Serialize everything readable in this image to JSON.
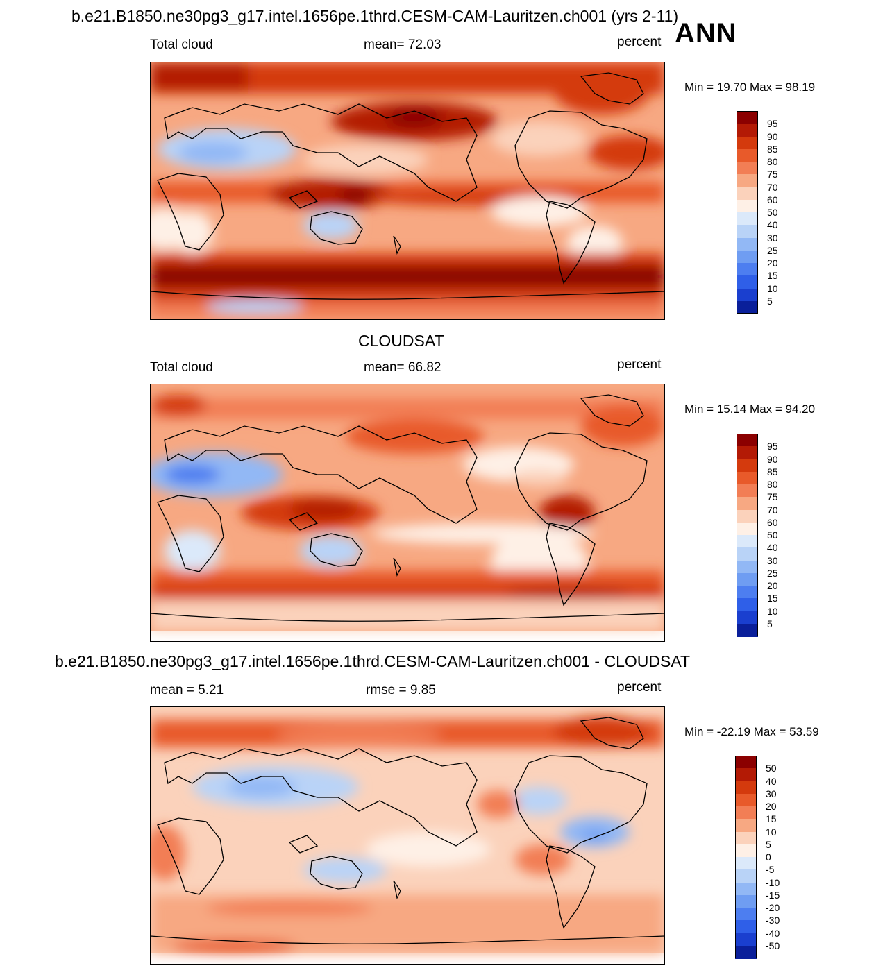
{
  "header": {
    "case_title": "b.e21.B1850.ne30pg3_g17.intel.1656pe.1thrd.CESM-CAM-Lauritzen.ch001 (yrs 2-11)",
    "season": "ANN"
  },
  "panels": [
    {
      "title": "",
      "left_label": "Total cloud",
      "center_label": "mean=  72.03",
      "units": "percent",
      "minmax": "Min =  19.70 Max =  98.19",
      "colorbar": {
        "colors": [
          "#8b0000",
          "#b31a05",
          "#d43a0d",
          "#e85a2a",
          "#f27e55",
          "#f7a882",
          "#fbd2bb",
          "#fef0e6",
          "#dbe9fa",
          "#b9d3f7",
          "#92b8f5",
          "#6f9df2",
          "#4d7ef0",
          "#2f5fe8",
          "#1a3fcf",
          "#0a1f9a"
        ],
        "labels": [
          "95",
          "90",
          "85",
          "80",
          "75",
          "70",
          "60",
          "50",
          "40",
          "30",
          "25",
          "20",
          "15",
          "10",
          "5"
        ]
      }
    },
    {
      "title": "CLOUDSAT",
      "left_label": "Total cloud",
      "center_label": "mean=  66.82",
      "units": "percent",
      "minmax": "Min =  15.14 Max =  94.20",
      "colorbar": {
        "colors": [
          "#8b0000",
          "#b31a05",
          "#d43a0d",
          "#e85a2a",
          "#f27e55",
          "#f7a882",
          "#fbd2bb",
          "#fef0e6",
          "#dbe9fa",
          "#b9d3f7",
          "#92b8f5",
          "#6f9df2",
          "#4d7ef0",
          "#2f5fe8",
          "#1a3fcf",
          "#0a1f9a"
        ],
        "labels": [
          "95",
          "90",
          "85",
          "80",
          "75",
          "70",
          "60",
          "50",
          "40",
          "30",
          "25",
          "20",
          "15",
          "10",
          "5"
        ]
      }
    },
    {
      "title": "b.e21.B1850.ne30pg3_g17.intel.1656pe.1thrd.CESM-CAM-Lauritzen.ch001 - CLOUDSAT",
      "left_label": "mean =   5.21",
      "center_label": "rmse =   9.85",
      "units": "percent",
      "minmax": "Min = -22.19 Max =  53.59",
      "colorbar": {
        "colors": [
          "#8b0000",
          "#b31a05",
          "#d43a0d",
          "#e85a2a",
          "#f27e55",
          "#f7a882",
          "#fbd2bb",
          "#fef0e6",
          "#dbe9fa",
          "#b9d3f7",
          "#92b8f5",
          "#6f9df2",
          "#4d7ef0",
          "#2f5fe8",
          "#1a3fcf",
          "#0a1f9a"
        ],
        "labels": [
          "50",
          "40",
          "30",
          "20",
          "15",
          "10",
          "5",
          "0",
          "-5",
          "-10",
          "-15",
          "-20",
          "-30",
          "-40",
          "-50"
        ]
      }
    }
  ]
}
